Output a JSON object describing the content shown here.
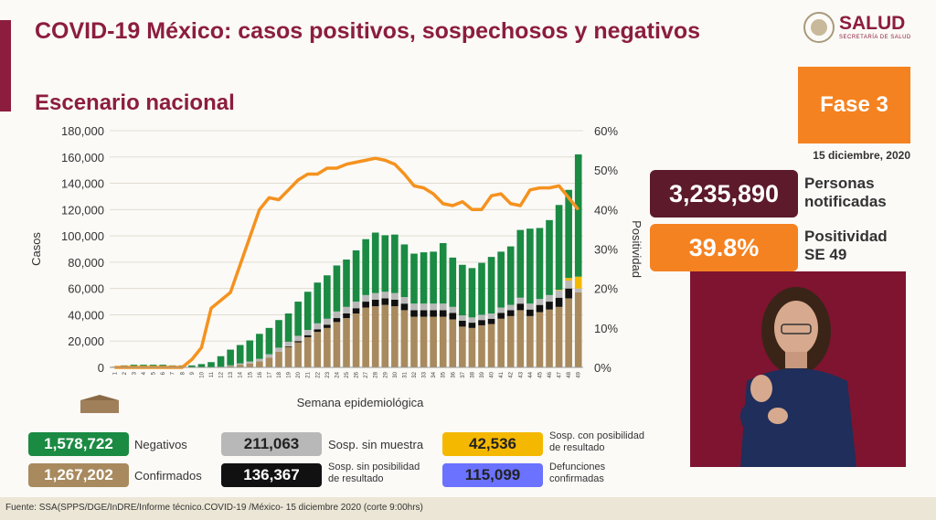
{
  "header": {
    "title": "COVID-19 México: casos positivos, sospechosos y negativos",
    "subtitle": "Escenario nacional"
  },
  "logo": {
    "text": "SALUD",
    "subtext": "SECRETARÍA DE SALUD"
  },
  "fase": {
    "label": "Fase 3",
    "date": "15 diciembre, 2020"
  },
  "stats": {
    "notificadas_value": "3,235,890",
    "notificadas_label_1": "Personas",
    "notificadas_label_2": "notificadas",
    "positividad_value": "39.8%",
    "positividad_label_1": "Positividad",
    "positividad_label_2": "SE 49"
  },
  "legend": {
    "negativos_value": "1,578,722",
    "negativos_label": "Negativos",
    "sosp_sin_muestra_value": "211,063",
    "sosp_sin_muestra_label": "Sosp. sin muestra",
    "sosp_con_pos_value": "42,536",
    "sosp_con_pos_label_1": "Sosp. con posibilidad",
    "sosp_con_pos_label_2": "de resultado",
    "confirmados_value": "1,267,202",
    "confirmados_label": "Confirmados",
    "sosp_sin_pos_value": "136,367",
    "sosp_sin_pos_label_1": "Sosp. sin posibilidad",
    "sosp_sin_pos_label_2": "de resultado",
    "defunciones_value": "115,099",
    "defunciones_label_1": "Defunciones",
    "defunciones_label_2": "confirmadas"
  },
  "footer": "Fuente: SSA(SPPS/DGE/InDRE/Informe técnico.COVID-19 /México- 15 diciembre 2020 (corte 9:00hrs)",
  "colors": {
    "negativos": "#1b8a43",
    "sosp_sin_muestra": "#b8b8b8",
    "sosp_con_pos": "#f5b800",
    "confirmados": "#a88a5e",
    "sosp_sin_pos": "#111111",
    "defunciones": "#6a72ff",
    "positividad_line": "#f5921e",
    "title": "#8c1d3f"
  },
  "chart_data": {
    "type": "bar",
    "xlabel": "Semana epidemiológica",
    "ylabel": "Casos",
    "y2label": "Positividad",
    "ylim": [
      0,
      180000
    ],
    "yticks": [
      "0",
      "20,000",
      "40,000",
      "60,000",
      "80,000",
      "100,000",
      "120,000",
      "140,000",
      "160,000",
      "180,000"
    ],
    "y2lim": [
      0,
      60
    ],
    "y2ticks": [
      "0%",
      "10%",
      "20%",
      "30%",
      "40%",
      "50%",
      "60%"
    ],
    "categories": [
      "1",
      "2",
      "3",
      "4",
      "5",
      "6",
      "7",
      "8",
      "9",
      "10",
      "11",
      "12",
      "13",
      "14",
      "15",
      "16",
      "17",
      "18",
      "19",
      "20",
      "21",
      "22",
      "23",
      "24",
      "25",
      "26",
      "27",
      "28",
      "29",
      "30",
      "31",
      "32",
      "33",
      "34",
      "35",
      "36",
      "37",
      "38",
      "39",
      "40",
      "41",
      "42",
      "43",
      "44",
      "45",
      "46",
      "47",
      "48",
      "49"
    ],
    "stacked": true,
    "series": [
      {
        "name": "Confirmados",
        "values": [
          0,
          0,
          0,
          0,
          0,
          0,
          0,
          0,
          0,
          0,
          0,
          500,
          1000,
          2000,
          3000,
          4500,
          7500,
          12000,
          15500,
          19000,
          23000,
          27000,
          30000,
          34500,
          37500,
          41000,
          45500,
          46500,
          47500,
          46500,
          43500,
          38500,
          38500,
          38500,
          38500,
          36500,
          31000,
          30000,
          32000,
          33000,
          37000,
          39000,
          43500,
          39000,
          42000,
          44000,
          46000,
          52500,
          57000
        ]
      },
      {
        "name": "Sosp. sin posibilidad de resultado",
        "values": [
          0,
          0,
          0,
          0,
          0,
          0,
          0,
          0,
          0,
          0,
          0,
          0,
          0,
          0,
          0,
          0,
          0,
          0,
          500,
          1000,
          1500,
          2000,
          2500,
          3000,
          3500,
          4000,
          4500,
          5000,
          5000,
          5000,
          5000,
          5000,
          5000,
          5000,
          5000,
          5000,
          4500,
          4000,
          4000,
          4000,
          4500,
          4500,
          5000,
          5000,
          5500,
          6000,
          7000,
          7500,
          0
        ]
      },
      {
        "name": "Sosp. sin muestra",
        "values": [
          0,
          0,
          0,
          0,
          0,
          0,
          0,
          0,
          0,
          0,
          0,
          0,
          500,
          1000,
          1500,
          2000,
          2500,
          3000,
          3500,
          4000,
          4000,
          4500,
          4500,
          5000,
          5000,
          5000,
          5000,
          5000,
          5000,
          5000,
          5000,
          5000,
          5000,
          5000,
          5000,
          4500,
          4000,
          4000,
          4000,
          4000,
          4000,
          4000,
          4500,
          4500,
          4500,
          5000,
          5500,
          6000,
          3000
        ]
      },
      {
        "name": "Sosp. con posibilidad de resultado",
        "values": [
          0,
          0,
          0,
          0,
          0,
          0,
          0,
          0,
          0,
          0,
          0,
          0,
          0,
          0,
          0,
          0,
          0,
          0,
          0,
          0,
          0,
          0,
          0,
          0,
          0,
          0,
          0,
          0,
          0,
          0,
          0,
          0,
          0,
          0,
          0,
          0,
          0,
          0,
          0,
          0,
          0,
          0,
          0,
          0,
          0,
          0,
          500,
          2000,
          9000
        ]
      },
      {
        "name": "Negativos",
        "values": [
          500,
          1500,
          2000,
          2000,
          2000,
          2000,
          1500,
          1500,
          1500,
          2500,
          4000,
          8000,
          12000,
          14000,
          16000,
          19000,
          20000,
          21000,
          21500,
          26000,
          29000,
          31000,
          33000,
          35000,
          36000,
          39000,
          42500,
          46000,
          43000,
          44500,
          40000,
          38000,
          39000,
          39500,
          46000,
          37500,
          38500,
          37500,
          39500,
          43000,
          42500,
          44500,
          51500,
          57000,
          54000,
          57000,
          64500,
          67000,
          93000
        ]
      }
    ],
    "positividad": [
      0,
      0,
      0,
      0,
      0,
      0,
      0,
      0,
      2,
      5,
      15,
      17,
      19,
      26,
      33,
      40,
      43,
      42.5,
      45,
      47.5,
      49,
      49,
      50.5,
      50.5,
      51.5,
      52,
      52.5,
      53,
      52.5,
      51.5,
      49,
      46,
      45.5,
      44,
      41.5,
      41,
      42,
      40,
      40,
      43.5,
      44,
      41.5,
      41,
      45,
      45.5,
      45.5,
      46,
      43,
      40
    ]
  }
}
